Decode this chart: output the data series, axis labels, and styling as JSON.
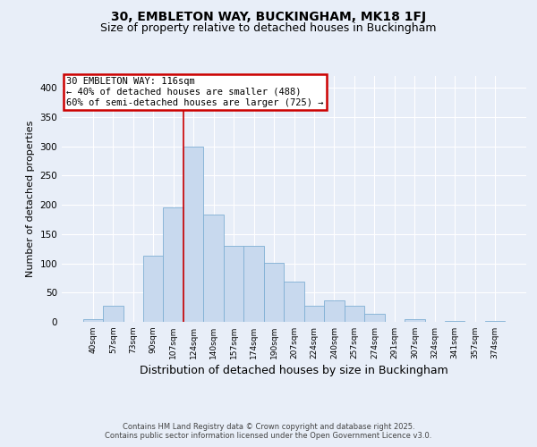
{
  "title": "30, EMBLETON WAY, BUCKINGHAM, MK18 1FJ",
  "subtitle": "Size of property relative to detached houses in Buckingham",
  "xlabel": "Distribution of detached houses by size in Buckingham",
  "ylabel": "Number of detached properties",
  "categories": [
    "40sqm",
    "57sqm",
    "73sqm",
    "90sqm",
    "107sqm",
    "124sqm",
    "140sqm",
    "157sqm",
    "174sqm",
    "190sqm",
    "207sqm",
    "224sqm",
    "240sqm",
    "257sqm",
    "274sqm",
    "291sqm",
    "307sqm",
    "324sqm",
    "341sqm",
    "357sqm",
    "374sqm"
  ],
  "values": [
    5,
    28,
    0,
    113,
    196,
    300,
    183,
    130,
    130,
    101,
    68,
    28,
    37,
    27,
    14,
    0,
    5,
    0,
    2,
    0,
    2
  ],
  "bar_color": "#c8d9ee",
  "bar_edge_color": "#7fafd4",
  "vline_color": "#cc0000",
  "annotation_text": "30 EMBLETON WAY: 116sqm\n← 40% of detached houses are smaller (488)\n60% of semi-detached houses are larger (725) →",
  "annotation_box_color": "#cc0000",
  "annotation_fontsize": 7.5,
  "fig_background_color": "#e8eef8",
  "plot_background_color": "#e8eef8",
  "grid_color": "#ffffff",
  "ylim": [
    0,
    420
  ],
  "yticks": [
    0,
    50,
    100,
    150,
    200,
    250,
    300,
    350,
    400
  ],
  "footer": "Contains HM Land Registry data © Crown copyright and database right 2025.\nContains public sector information licensed under the Open Government Licence v3.0.",
  "title_fontsize": 10,
  "subtitle_fontsize": 9,
  "xlabel_fontsize": 9,
  "ylabel_fontsize": 8
}
